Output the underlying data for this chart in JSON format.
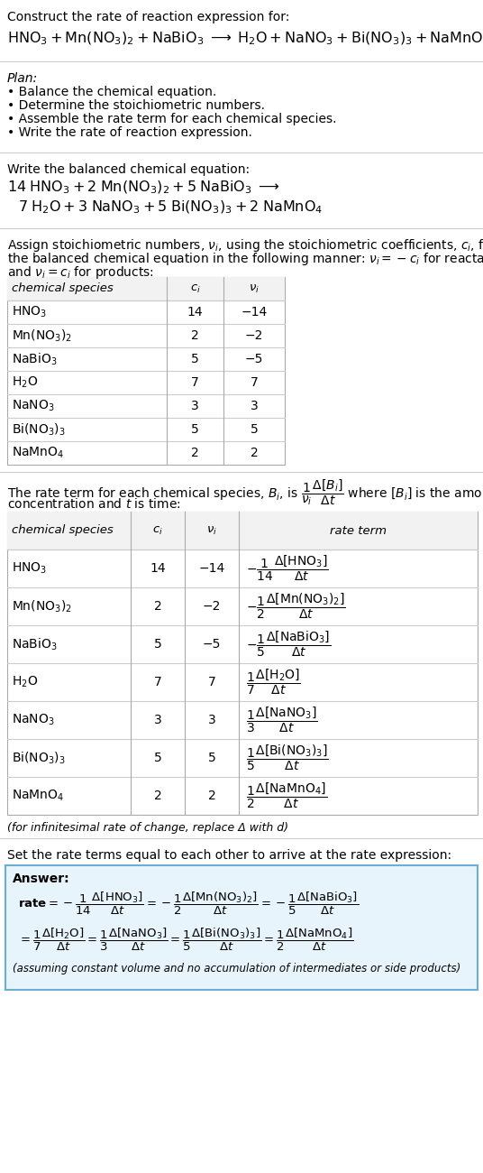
{
  "bg_color": "#ffffff",
  "title_line": "Construct the rate of reaction expression for:",
  "plan_header": "Plan:",
  "plan_items": [
    "• Balance the chemical equation.",
    "• Determine the stoichiometric numbers.",
    "• Assemble the rate term for each chemical species.",
    "• Write the rate of reaction expression."
  ],
  "balanced_header": "Write the balanced chemical equation:",
  "stoich_intro_1": "Assign stoichiometric numbers, ",
  "stoich_intro_2": ", using the stoichiometric coefficients, ",
  "stoich_intro_3": ", from",
  "stoich_intro_4": "the balanced chemical equation in the following manner: ",
  "stoich_intro_5": " for reactants",
  "stoich_intro_6": "and ",
  "stoich_intro_7": " for products:",
  "infinitesimal_note": "(for infinitesimal rate of change, replace Δ with d)",
  "set_rate_text": "Set the rate terms equal to each other to arrive at the rate expression:",
  "answer_label": "Answer:",
  "answer_note": "(assuming constant volume and no accumulation of intermediates or side products)",
  "answer_box_color": "#e8f4fc",
  "answer_box_border": "#6baed6"
}
